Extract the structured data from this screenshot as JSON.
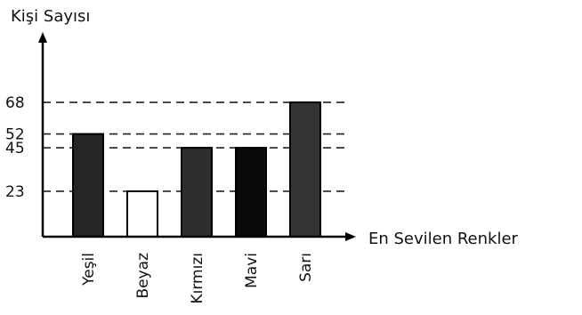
{
  "chart_data": {
    "type": "bar",
    "ylabel": "Kişi Sayısı",
    "xlabel": "En Sevilen Renkler",
    "categories": [
      "Yeşil",
      "Beyaz",
      "Kırmızı",
      "Mavi",
      "Sarı"
    ],
    "values": [
      52,
      23,
      45,
      45,
      68
    ],
    "yticks": [
      23,
      45,
      52,
      68
    ],
    "ylim": [
      0,
      100
    ],
    "grid": "dashed reference lines at tick values",
    "bar_colors": [
      "#262626",
      "#ffffff",
      "#2e2e2e",
      "#0a0a0a",
      "#333333"
    ],
    "bar_outline": "#000000"
  }
}
